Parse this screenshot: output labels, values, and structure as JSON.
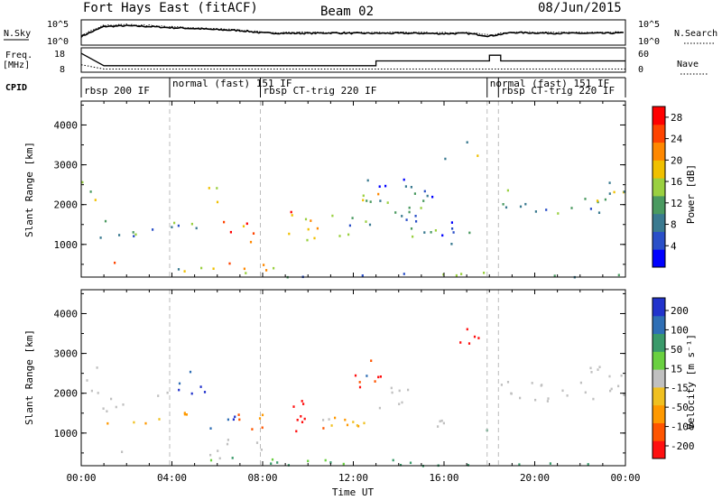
{
  "header": {
    "station": "Fort Hays East (fitACF)",
    "beam": "Beam 02",
    "date": "08/Jun/2015"
  },
  "top_panels": {
    "nsky_label": "N.Sky",
    "nsearch_label": "N.Search",
    "nsky_ticks": [
      "10^5",
      "10^0"
    ],
    "nsearch_ticks": [
      "10^5",
      "10^0"
    ],
    "freq_label": "Freq.",
    "freq_unit": "[MHz]",
    "freq_ticks": [
      "18",
      "8"
    ],
    "nave_label": "Nave",
    "nave_ticks": [
      "60",
      "0"
    ],
    "cpid_label": "CPID"
  },
  "colors": {
    "power_scale": [
      "#0000ff",
      "#2a4fc8",
      "#3a7a90",
      "#4a9a60",
      "#9ad040",
      "#f0c000",
      "#ff8800",
      "#ff4400",
      "#ff0000"
    ],
    "velocity_scale": [
      "#2233cc",
      "#2f6fb5",
      "#3a9a6a",
      "#6ad040",
      "#c0c0c0",
      "#f0c020",
      "#ff9900",
      "#ff5500",
      "#ff1010"
    ],
    "ground_scatter": "#c0c0c0"
  },
  "chart_data": [
    {
      "type": "line",
      "panel": "noise",
      "ylabel": "N.Sky",
      "ylabel_right": "N.Search",
      "ylim_log10": [
        0,
        5
      ],
      "x": [
        "00:00",
        "01:00",
        "02:00",
        "03:00",
        "04:00",
        "05:00",
        "06:00",
        "07:00",
        "08:00",
        "09:00",
        "10:00",
        "11:00",
        "12:00",
        "13:00",
        "14:00",
        "15:00",
        "16:00",
        "17:00",
        "18:00",
        "19:00",
        "20:00",
        "21:00",
        "22:00",
        "23:00",
        "24:00"
      ],
      "series": [
        {
          "values": [
            1.5,
            4.0,
            4.2,
            4.0,
            3.7,
            3.5,
            3.2,
            3.0,
            2.4,
            2.3,
            2.3,
            2.4,
            2.3,
            2.3,
            2.3,
            2.3,
            2.2,
            2.3,
            1.6,
            2.5,
            2.4,
            2.3,
            2.3,
            2.3,
            2.4
          ]
        },
        {
          "values": [
            1.8,
            4.3,
            4.5,
            4.3,
            3.9,
            3.7,
            3.4,
            3.1,
            2.6,
            2.5,
            2.5,
            2.6,
            2.5,
            2.5,
            2.5,
            2.5,
            2.4,
            2.5,
            1.9,
            2.7,
            2.6,
            2.5,
            2.5,
            2.5,
            2.6
          ]
        }
      ]
    },
    {
      "type": "line",
      "panel": "frequency",
      "ylabel": "Freq.",
      "ylim": [
        8,
        18
      ],
      "ylim_right": [
        0,
        60
      ],
      "series": [
        {
          "steps": [
            [
              0,
              17
            ],
            [
              1,
              10.5
            ],
            [
              13,
              10.5
            ],
            [
              13,
              13
            ],
            [
              18,
              13
            ],
            [
              18,
              16
            ],
            [
              18.5,
              16
            ],
            [
              18.5,
              13
            ],
            [
              24,
              13
            ]
          ]
        },
        {
          "steps": [
            [
              0,
              11
            ],
            [
              1,
              8.7
            ],
            [
              24,
              8.7
            ]
          ]
        }
      ]
    },
    {
      "type": "table",
      "panel": "cpid",
      "segments": [
        {
          "start": 0.0,
          "end": 3.9,
          "label": "rbsp 200 IF"
        },
        {
          "start": 3.9,
          "end": 7.9,
          "label": "normal (fast) 151 IF"
        },
        {
          "start": 7.9,
          "end": 17.9,
          "label": "rbsp CT-trig 220 IF"
        },
        {
          "start": 17.9,
          "end": 18.4,
          "label": "normal (fast) 151 IF"
        },
        {
          "start": 18.4,
          "end": 24.0,
          "label": "rbsp CT-trig 220 IF"
        }
      ]
    },
    {
      "type": "heatmap",
      "panel": "power",
      "ylabel": "Slant Range [km]",
      "yticks": [
        "1000",
        "2000",
        "3000",
        "4000"
      ],
      "ylim": [
        180,
        4600
      ],
      "xlim": [
        0,
        24
      ],
      "colorbar": {
        "label": "Power [dB]",
        "ticks": [
          "4",
          "8",
          "12",
          "16",
          "20",
          "24",
          "28"
        ],
        "range": [
          0,
          30
        ]
      },
      "regions": [
        [
          0.0,
          0.6,
          1900,
          2700,
          14
        ],
        [
          0.6,
          1.7,
          1150,
          1350,
          8
        ],
        [
          0.9,
          1.2,
          1600,
          1850,
          10
        ],
        [
          1.7,
          3.5,
          1150,
          1450,
          12
        ],
        [
          3.5,
          4.4,
          1300,
          1600,
          10
        ],
        [
          1.2,
          1.7,
          400,
          600,
          18
        ],
        [
          4.2,
          5.2,
          1400,
          1750,
          12
        ],
        [
          5.5,
          6.2,
          1950,
          2600,
          22
        ],
        [
          6.2,
          7.5,
          1050,
          1600,
          26
        ],
        [
          7.5,
          8.0,
          1150,
          1400,
          22
        ],
        [
          9.0,
          10.4,
          1050,
          1900,
          20
        ],
        [
          11.0,
          12.7,
          1200,
          1800,
          12
        ],
        [
          12.3,
          13.2,
          2100,
          2800,
          18
        ],
        [
          13.0,
          15.0,
          1500,
          2100,
          8
        ],
        [
          14.5,
          16.5,
          950,
          1450,
          8
        ],
        [
          15.8,
          17.2,
          1300,
          1700,
          8
        ],
        [
          16.0,
          17.0,
          3100,
          3300,
          10
        ],
        [
          17.2,
          17.5,
          3050,
          3300,
          26
        ],
        [
          16.8,
          17.2,
          3450,
          3700,
          8
        ],
        [
          18.5,
          20.0,
          1900,
          2400,
          10
        ],
        [
          20.0,
          21.5,
          1800,
          2050,
          8
        ],
        [
          21.5,
          22.5,
          1900,
          2300,
          10
        ],
        [
          22.5,
          24.0,
          1800,
          2600,
          14
        ],
        [
          5.2,
          9.0,
          280,
          560,
          22
        ],
        [
          9.0,
          18.0,
          200,
          330,
          10
        ],
        [
          18.0,
          24.0,
          200,
          280,
          10
        ],
        [
          12.5,
          15.5,
          2100,
          2700,
          8
        ],
        [
          4.0,
          5.0,
          250,
          500,
          12
        ]
      ]
    },
    {
      "type": "heatmap",
      "panel": "velocity",
      "ylabel": "Slant Range [km]",
      "yticks": [
        "1000",
        "2000",
        "3000",
        "4000"
      ],
      "ylim": [
        180,
        4600
      ],
      "xlim": [
        0,
        24
      ],
      "colorbar": {
        "label": "Velocity [m s⁻¹]",
        "ticks": [
          "200",
          "100",
          "50",
          "15",
          "-15",
          "-50",
          "-100",
          "-200"
        ],
        "range": [
          -250,
          250
        ]
      },
      "ground_scatter_regions": [
        [
          0.0,
          0.8,
          2000,
          2700
        ],
        [
          0.8,
          2.0,
          1550,
          2100
        ],
        [
          1.2,
          1.8,
          380,
          620
        ],
        [
          3.3,
          4.0,
          1750,
          2100
        ],
        [
          5.2,
          6.2,
          350,
          700
        ],
        [
          6.2,
          8.0,
          600,
          900
        ],
        [
          8.6,
          9.0,
          1050,
          1200
        ],
        [
          13.0,
          14.5,
          1600,
          2200
        ],
        [
          14.5,
          16.5,
          1150,
          1400
        ],
        [
          18.5,
          20.5,
          1800,
          2400
        ],
        [
          20.5,
          22.0,
          1750,
          2100
        ],
        [
          22.0,
          24.0,
          1850,
          2700
        ]
      ],
      "regions": [
        [
          1.0,
          3.5,
          1150,
          1400,
          -30
        ],
        [
          3.5,
          5.0,
          1250,
          1550,
          -60
        ],
        [
          4.2,
          5.6,
          2000,
          2600,
          180
        ],
        [
          5.6,
          6.8,
          950,
          1450,
          180
        ],
        [
          6.8,
          7.5,
          1000,
          1500,
          -120
        ],
        [
          7.5,
          8.4,
          1150,
          1600,
          -90
        ],
        [
          9.0,
          10.4,
          1050,
          1850,
          -200
        ],
        [
          10.4,
          11.0,
          1000,
          1300,
          -90
        ],
        [
          11.0,
          12.3,
          1000,
          1500,
          -40
        ],
        [
          12.0,
          13.2,
          2100,
          2900,
          -150
        ],
        [
          12.3,
          12.8,
          2400,
          2700,
          130
        ],
        [
          16.3,
          17.5,
          3050,
          3650,
          -190
        ],
        [
          17.3,
          18.0,
          1050,
          1300,
          60
        ],
        [
          5.2,
          9.0,
          250,
          420,
          25
        ],
        [
          9.0,
          18.5,
          200,
          360,
          30
        ],
        [
          18.5,
          24.0,
          200,
          280,
          30
        ],
        [
          10.0,
          13.0,
          1150,
          1400,
          -20
        ]
      ]
    }
  ],
  "xaxis": {
    "label": "Time UT",
    "ticks": [
      "00:00",
      "04:00",
      "08:00",
      "12:00",
      "16:00",
      "20:00",
      "00:00"
    ]
  }
}
